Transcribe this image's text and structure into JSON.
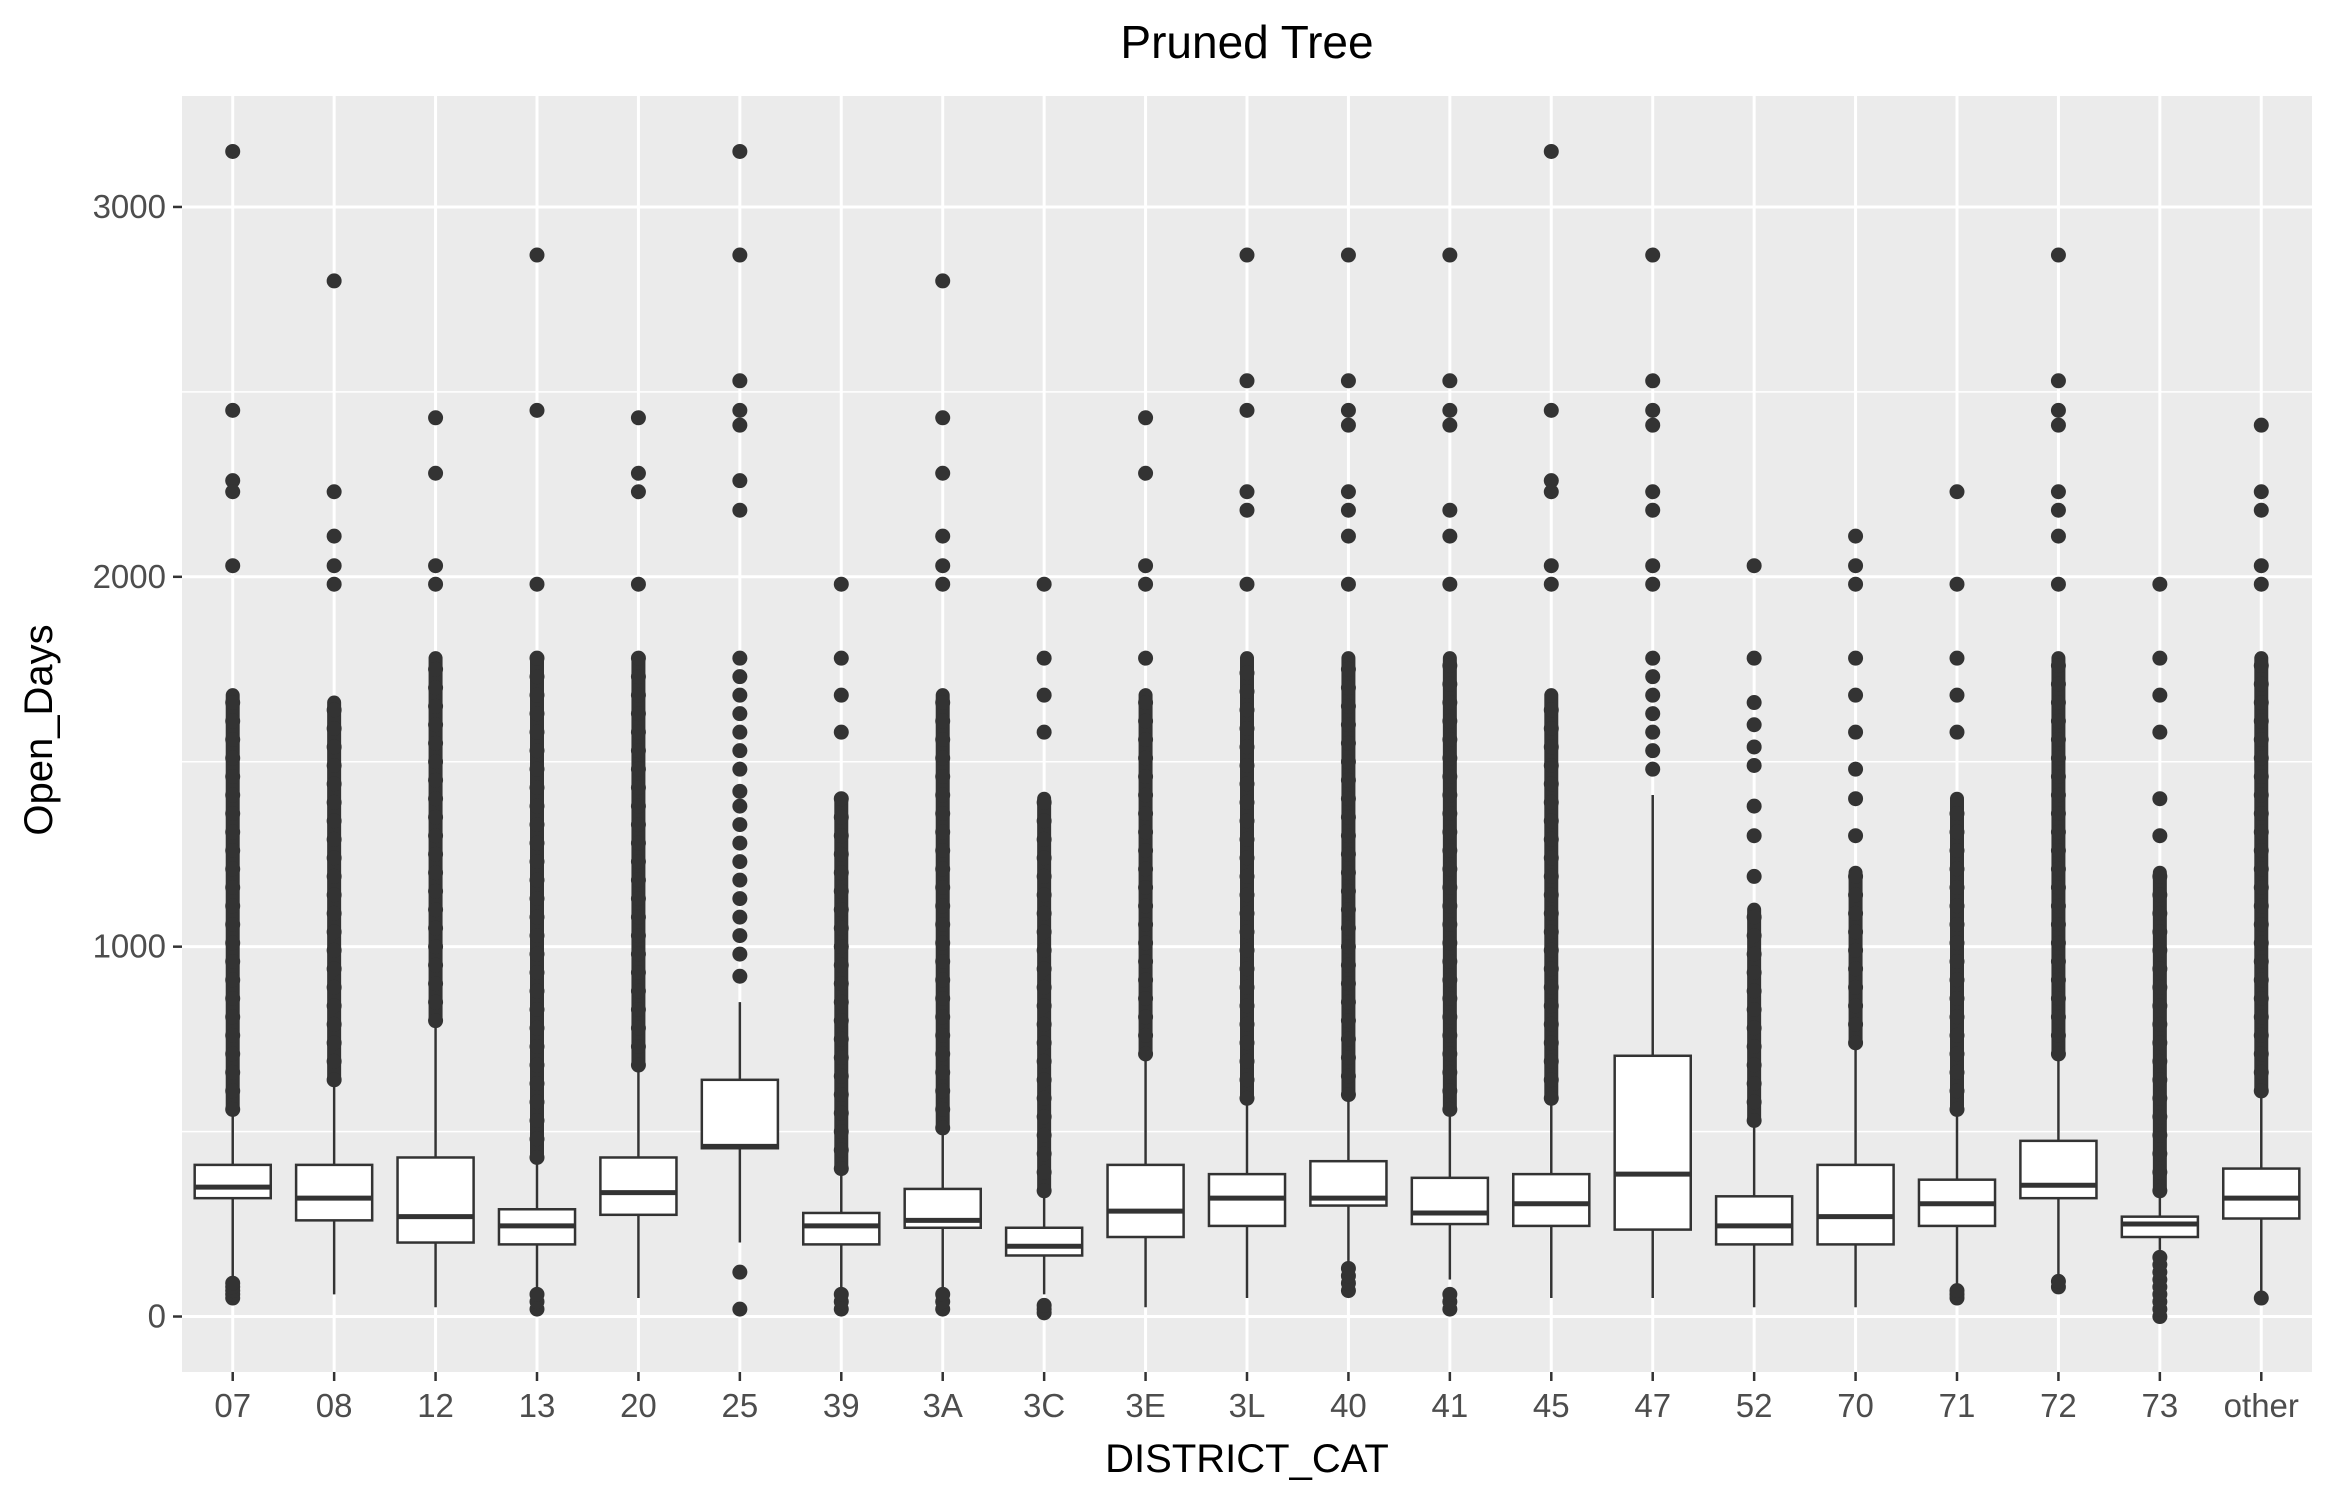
{
  "chart_data": {
    "type": "boxplot",
    "title": "Pruned Tree",
    "xlabel": "DISTRICT_CAT",
    "ylabel": "Open_Days",
    "ylim": [
      -150,
      3300
    ],
    "yticks": [
      0,
      1000,
      2000,
      3000
    ],
    "grid": true,
    "legend": "none",
    "colors": {
      "panel": "#ebebeb",
      "grid": "#ffffff",
      "box_fill": "#ffffff",
      "box_stroke": "#333333",
      "outlier": "#333333",
      "tick": "#333333"
    },
    "categories": [
      "07",
      "08",
      "12",
      "13",
      "20",
      "25",
      "39",
      "3A",
      "3C",
      "3E",
      "3L",
      "40",
      "41",
      "45",
      "47",
      "52",
      "70",
      "71",
      "72",
      "73",
      "other"
    ],
    "boxes": [
      {
        "q1": 320,
        "median": 350,
        "q3": 410,
        "whisker_low": 95,
        "whisker_high": 545,
        "outliers_high": [
          3150,
          2450,
          2260,
          2230,
          2030
        ],
        "outliers_low": [
          50,
          60,
          70,
          80,
          90
        ],
        "dense_high": [
          560,
          1680
        ]
      },
      {
        "q1": 260,
        "median": 320,
        "q3": 410,
        "whisker_low": 60,
        "whisker_high": 630,
        "outliers_high": [
          2800,
          2230,
          2110,
          2030,
          1980
        ],
        "outliers_low": [],
        "dense_high": [
          640,
          1660
        ]
      },
      {
        "q1": 200,
        "median": 270,
        "q3": 430,
        "whisker_low": 25,
        "whisker_high": 780,
        "outliers_high": [
          2430,
          2280,
          2030,
          1980
        ],
        "outliers_low": [],
        "dense_high": [
          800,
          1780
        ]
      },
      {
        "q1": 195,
        "median": 245,
        "q3": 290,
        "whisker_low": 70,
        "whisker_high": 420,
        "outliers_high": [
          2870,
          2450,
          1980
        ],
        "outliers_low": [
          20,
          40,
          60
        ],
        "dense_high": [
          430,
          1780
        ]
      },
      {
        "q1": 275,
        "median": 335,
        "q3": 430,
        "whisker_low": 50,
        "whisker_high": 670,
        "outliers_high": [
          2430,
          2280,
          2230,
          1980
        ],
        "outliers_low": [],
        "dense_high": [
          680,
          1780
        ]
      },
      {
        "q1": 455,
        "median": 460,
        "q3": 640,
        "whisker_low": 200,
        "whisker_high": 850,
        "outliers_high": [
          3150,
          2870,
          2530,
          2450,
          2410,
          2260,
          2180,
          1780,
          1730,
          1680,
          1630,
          1580,
          1530,
          1480,
          1420,
          1380,
          1330,
          1280,
          1230,
          1180,
          1130,
          1080,
          1030,
          980,
          920
        ],
        "outliers_low": [
          120,
          20
        ],
        "dense_high": []
      },
      {
        "q1": 195,
        "median": 245,
        "q3": 280,
        "whisker_low": 70,
        "whisker_high": 390,
        "outliers_high": [
          1980,
          1780,
          1680,
          1580
        ],
        "outliers_low": [
          20,
          40,
          60
        ],
        "dense_high": [
          400,
          1400
        ]
      },
      {
        "q1": 240,
        "median": 260,
        "q3": 345,
        "whisker_low": 70,
        "whisker_high": 500,
        "outliers_high": [
          2800,
          2430,
          2280,
          2110,
          2030,
          1980
        ],
        "outliers_low": [
          20,
          40,
          60
        ],
        "dense_high": [
          510,
          1680
        ]
      },
      {
        "q1": 165,
        "median": 190,
        "q3": 240,
        "whisker_low": 60,
        "whisker_high": 330,
        "outliers_high": [
          1980,
          1780,
          1680,
          1580
        ],
        "outliers_low": [
          10,
          20,
          30
        ],
        "dense_high": [
          340,
          1400
        ]
      },
      {
        "q1": 215,
        "median": 285,
        "q3": 410,
        "whisker_low": 25,
        "whisker_high": 700,
        "outliers_high": [
          2430,
          2280,
          2030,
          1980,
          1780
        ],
        "outliers_low": [],
        "dense_high": [
          710,
          1680
        ]
      },
      {
        "q1": 245,
        "median": 320,
        "q3": 385,
        "whisker_low": 50,
        "whisker_high": 580,
        "outliers_high": [
          2870,
          2530,
          2450,
          2230,
          2180,
          1980
        ],
        "outliers_low": [],
        "dense_high": [
          590,
          1780
        ]
      },
      {
        "q1": 300,
        "median": 320,
        "q3": 420,
        "whisker_low": 140,
        "whisker_high": 590,
        "outliers_high": [
          2870,
          2530,
          2450,
          2410,
          2230,
          2180,
          2110,
          1980
        ],
        "outliers_low": [
          70,
          90,
          110,
          130
        ],
        "dense_high": [
          600,
          1780
        ]
      },
      {
        "q1": 250,
        "median": 280,
        "q3": 375,
        "whisker_low": 100,
        "whisker_high": 550,
        "outliers_high": [
          2870,
          2530,
          2450,
          2410,
          2180,
          2110,
          1980
        ],
        "outliers_low": [
          20,
          40,
          60
        ],
        "dense_high": [
          560,
          1780
        ]
      },
      {
        "q1": 245,
        "median": 305,
        "q3": 385,
        "whisker_low": 50,
        "whisker_high": 580,
        "outliers_high": [
          3150,
          2450,
          2260,
          2230,
          2030,
          1980
        ],
        "outliers_low": [],
        "dense_high": [
          590,
          1680
        ]
      },
      {
        "q1": 235,
        "median": 385,
        "q3": 705,
        "whisker_low": 50,
        "whisker_high": 1410,
        "outliers_high": [
          2870,
          2530,
          2450,
          2410,
          2230,
          2180,
          2030,
          1980,
          1780,
          1730,
          1680,
          1630,
          1580,
          1530,
          1480
        ],
        "outliers_low": [],
        "dense_high": []
      },
      {
        "q1": 195,
        "median": 245,
        "q3": 325,
        "whisker_low": 25,
        "whisker_high": 520,
        "outliers_high": [
          2030,
          1780,
          1660,
          1600,
          1540,
          1490,
          1380,
          1300,
          1190
        ],
        "outliers_low": [],
        "dense_high": [
          530,
          1100
        ]
      },
      {
        "q1": 195,
        "median": 270,
        "q3": 410,
        "whisker_low": 25,
        "whisker_high": 730,
        "outliers_high": [
          2110,
          2030,
          1980,
          1780,
          1680,
          1580,
          1480,
          1400,
          1300
        ],
        "outliers_low": [],
        "dense_high": [
          740,
          1200
        ]
      },
      {
        "q1": 245,
        "median": 305,
        "q3": 370,
        "whisker_low": 80,
        "whisker_high": 550,
        "outliers_high": [
          2230,
          1980,
          1780,
          1680,
          1580
        ],
        "outliers_low": [
          50,
          60,
          70
        ],
        "dense_high": [
          560,
          1400
        ]
      },
      {
        "q1": 320,
        "median": 355,
        "q3": 475,
        "whisker_low": 110,
        "whisker_high": 700,
        "outliers_high": [
          2870,
          2530,
          2450,
          2410,
          2230,
          2180,
          2110,
          1980
        ],
        "outliers_low": [
          80,
          95
        ],
        "dense_high": [
          710,
          1780
        ]
      },
      {
        "q1": 215,
        "median": 250,
        "q3": 270,
        "whisker_low": 180,
        "whisker_high": 330,
        "outliers_high": [
          1980,
          1780,
          1680,
          1580,
          1400,
          1300
        ],
        "outliers_low": [
          0,
          20,
          40,
          60,
          80,
          100,
          120,
          140,
          160
        ],
        "dense_high": [
          340,
          1200
        ]
      },
      {
        "q1": 265,
        "median": 320,
        "q3": 400,
        "whisker_low": 60,
        "whisker_high": 600,
        "outliers_high": [
          2410,
          2230,
          2180,
          2030,
          1980
        ],
        "outliers_low": [
          50
        ],
        "dense_high": [
          610,
          1780
        ]
      }
    ]
  }
}
